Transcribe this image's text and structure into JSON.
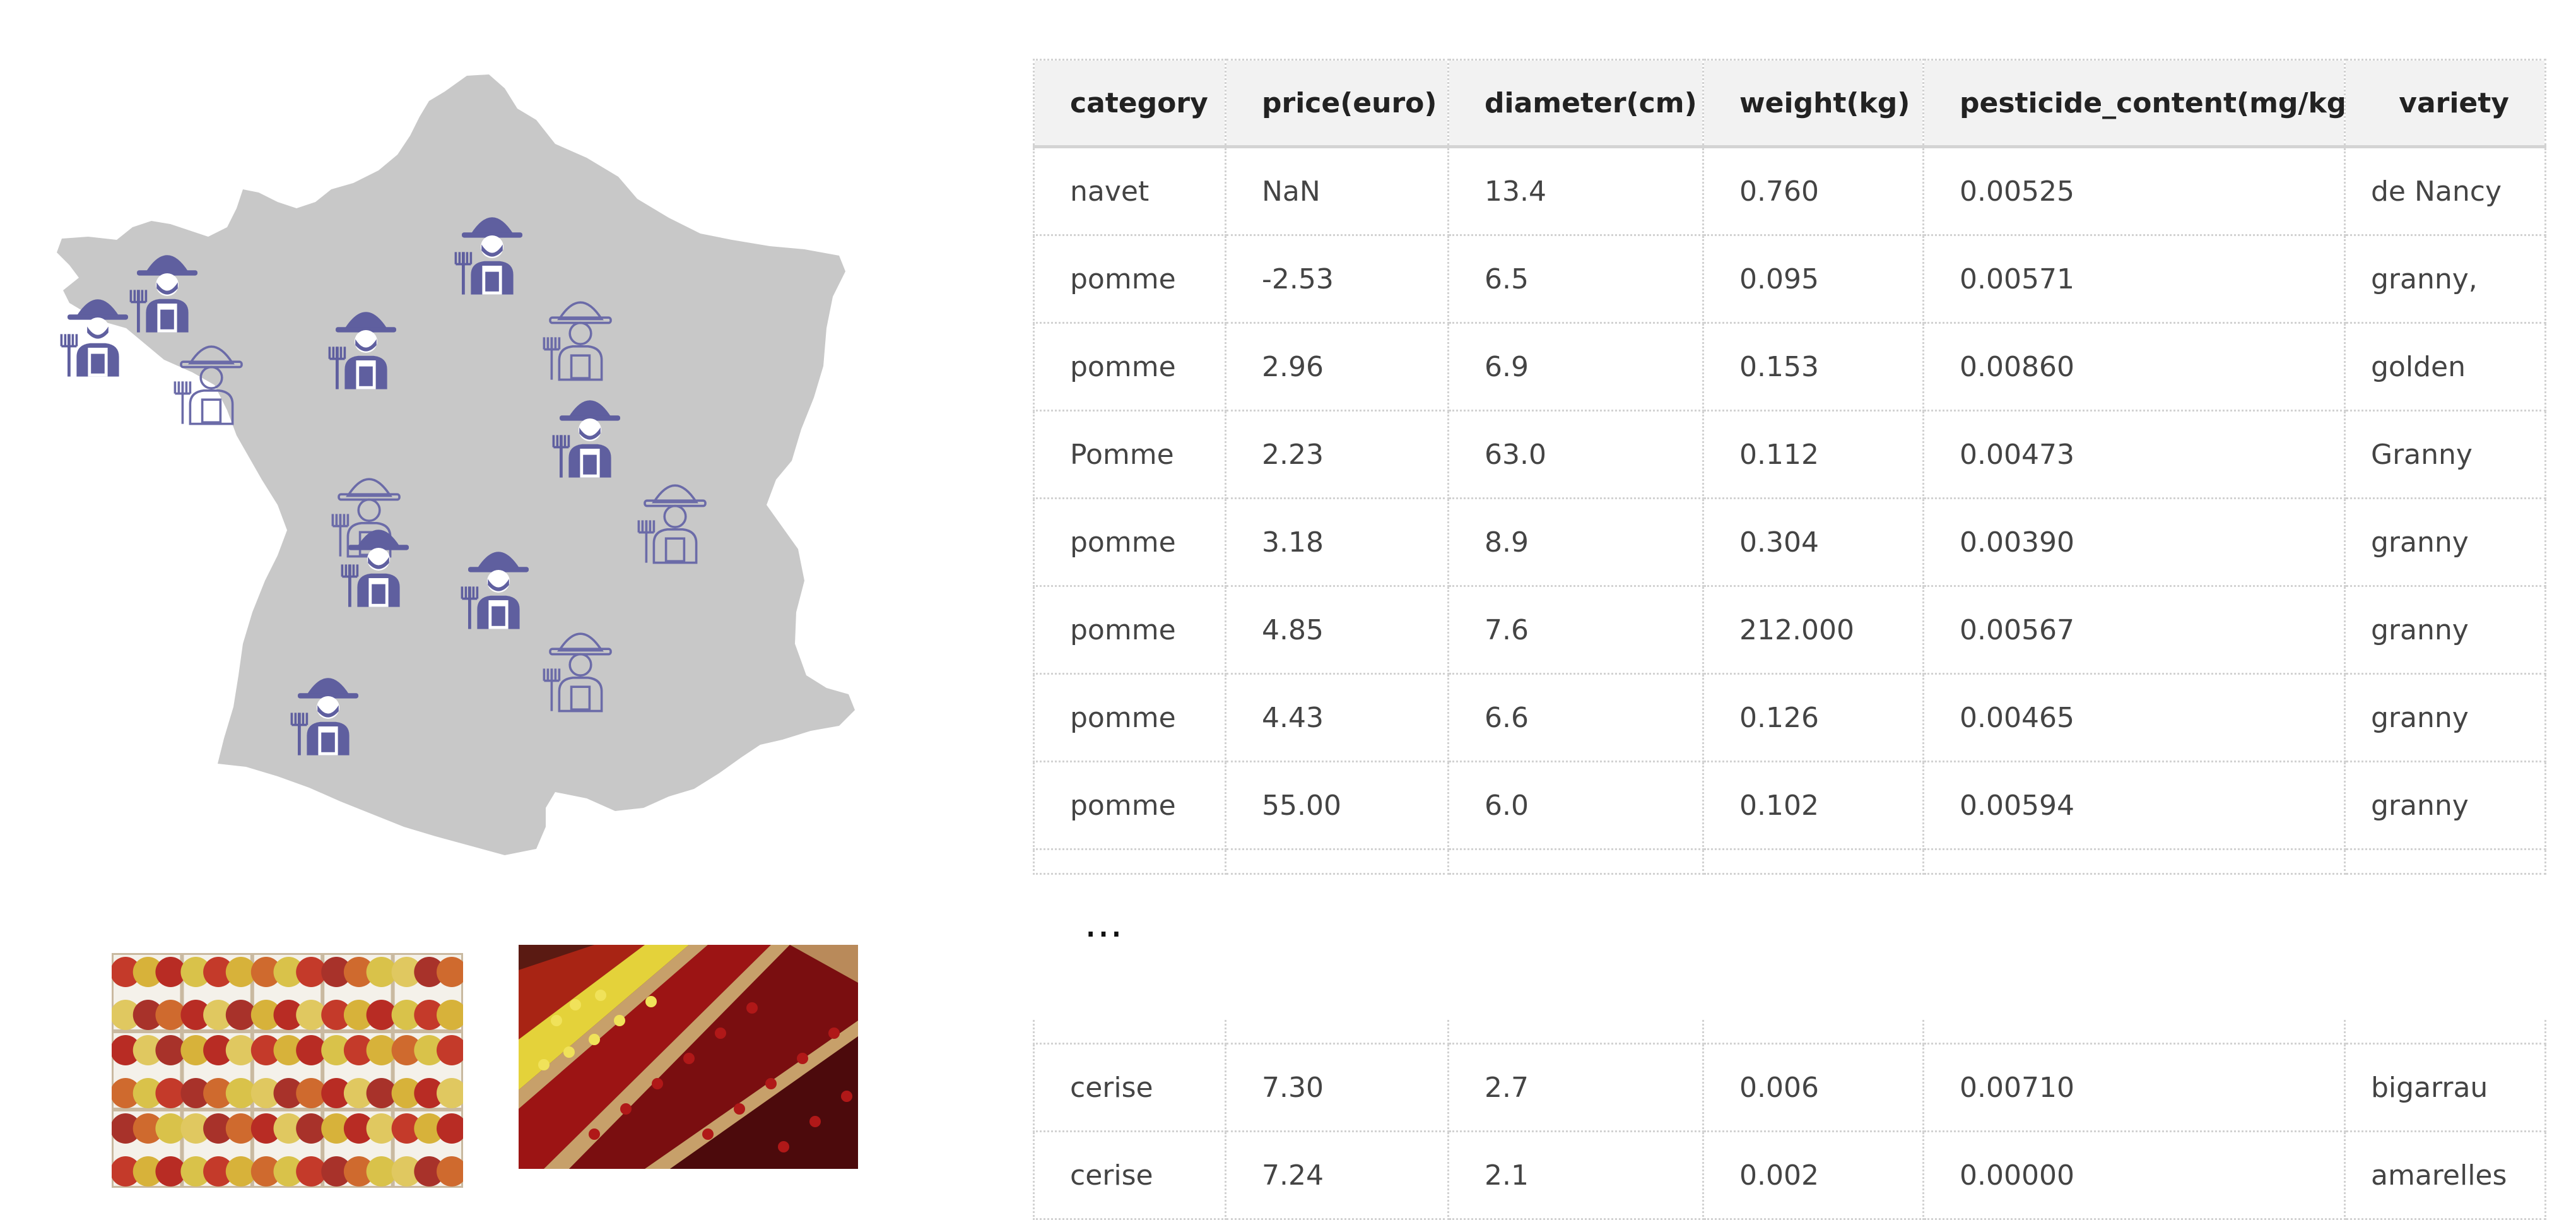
{
  "map": {
    "farmers": [
      {
        "style": "filled"
      },
      {
        "style": "filled"
      },
      {
        "style": "outline"
      },
      {
        "style": "filled"
      },
      {
        "style": "filled"
      },
      {
        "style": "outline"
      },
      {
        "style": "filled"
      },
      {
        "style": "outline"
      },
      {
        "style": "filled"
      },
      {
        "style": "outline"
      },
      {
        "style": "filled"
      },
      {
        "style": "outline"
      },
      {
        "style": "filled"
      }
    ],
    "colors": {
      "land": "#c8c8c8",
      "farmer": "#5f5f9f"
    }
  },
  "photos": [
    {
      "name": "apples-crates"
    },
    {
      "name": "cherries-crates"
    }
  ],
  "table": {
    "columns": [
      "category",
      "price(euro)",
      "diameter(cm)",
      "weight(kg)",
      "pesticide_content(mg/kg)",
      "variety"
    ],
    "rows": [
      [
        "navet",
        "NaN",
        "13.4",
        "0.760",
        "0.00525",
        "de Nancy"
      ],
      [
        "pomme",
        "-2.53",
        "6.5",
        "0.095",
        "0.00571",
        "granny,"
      ],
      [
        "pomme",
        "2.96",
        "6.9",
        "0.153",
        "0.00860",
        "golden"
      ],
      [
        "Pomme",
        "2.23",
        "63.0",
        "0.112",
        "0.00473",
        "Granny"
      ],
      [
        "pomme",
        "3.18",
        "8.9",
        "0.304",
        "0.00390",
        "granny"
      ],
      [
        "pomme",
        "4.85",
        "7.6",
        "212.000",
        "0.00567",
        "granny"
      ],
      [
        "pomme",
        "4.43",
        "6.6",
        "0.126",
        "0.00465",
        "granny"
      ],
      [
        "pomme",
        "55.00",
        "6.0",
        "0.102",
        "0.00594",
        "granny"
      ]
    ],
    "ellipsis": "...",
    "tail_rows": [
      [
        "cerise",
        "7.30",
        "2.7",
        "0.006",
        "0.00710",
        "bigarrau"
      ],
      [
        "cerise",
        "7.24",
        "2.1",
        "0.002",
        "0.00000",
        "amarelles"
      ]
    ]
  }
}
